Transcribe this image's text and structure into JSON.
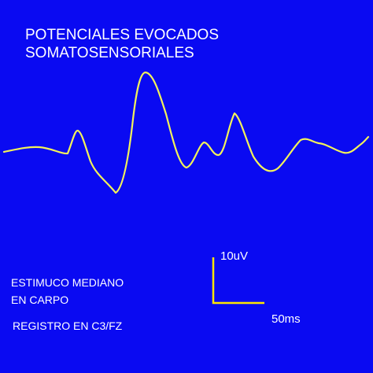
{
  "header": {
    "title_lines": [
      "POTENCIALES EVOCADOS",
      "SOMATOSENSORIALES"
    ]
  },
  "scale": {
    "amplitude": "10uV",
    "time": "50ms"
  },
  "notes": {
    "stimulus_lines": [
      "ESTIMUCO MEDIANO",
      "EN CARPO"
    ],
    "recording": "REGISTRO EN C3/FZ"
  }
}
